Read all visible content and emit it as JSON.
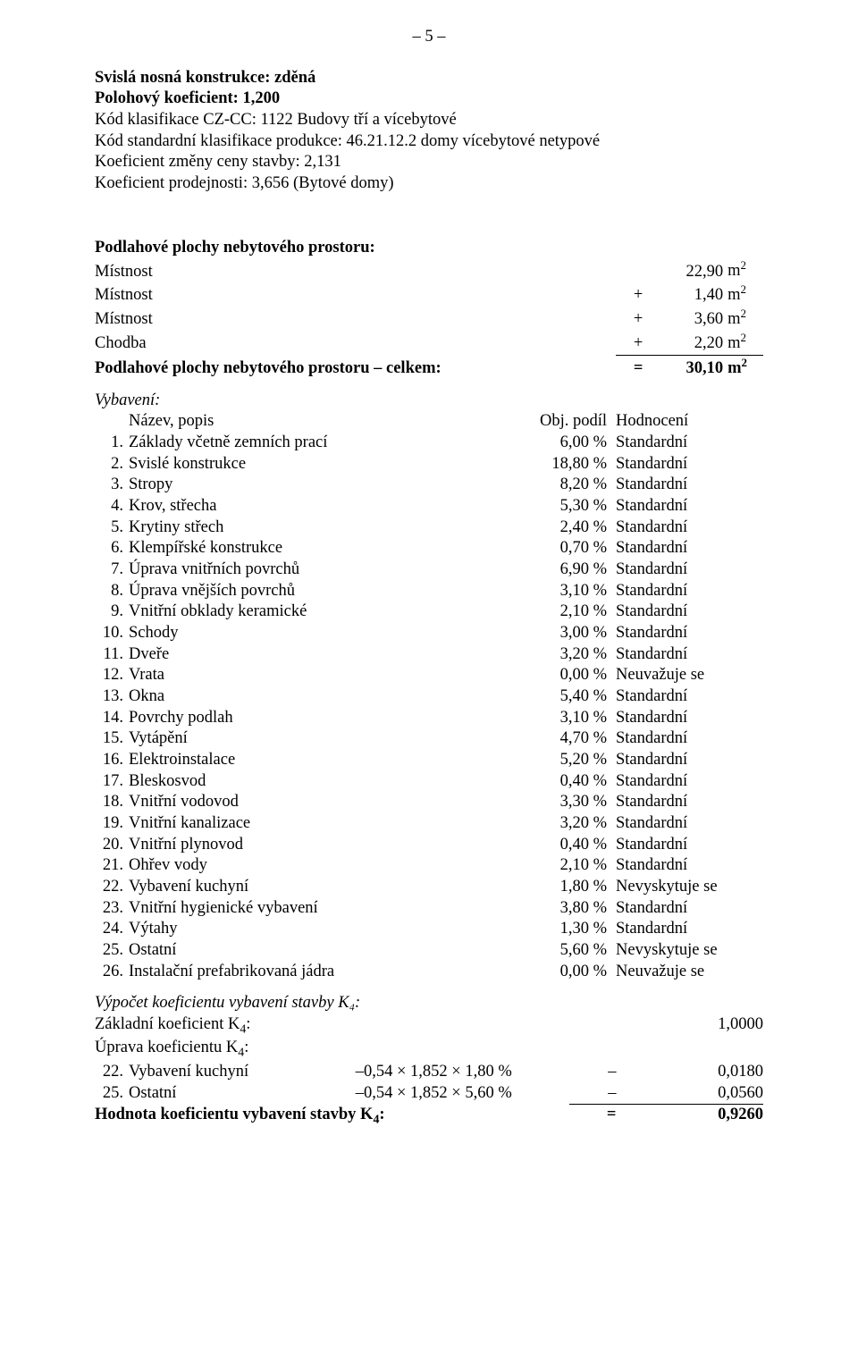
{
  "page_number": "– 5 –",
  "header": {
    "lines": [
      {
        "label": "Svislá nosná konstrukce:",
        "value": "zděná",
        "bold": true
      },
      {
        "label": "Polohový koeficient:",
        "value": "1,200",
        "bold": true
      },
      {
        "label": "Kód klasifikace CZ-CC:",
        "value": "1122 Budovy tří a vícebytové",
        "bold": false
      },
      {
        "label": "Kód standardní klasifikace produkce:",
        "value": "46.21.12.2     domy vícebytové netypové",
        "bold": false
      },
      {
        "label": "Koeficient změny ceny stavby:",
        "value": "2,131",
        "bold": false
      },
      {
        "label": "Koeficient prodejnosti:",
        "value": "3,656 (Bytové domy)",
        "bold": false
      }
    ]
  },
  "rooms": {
    "heading": "Podlahové plochy nebytového prostoru:",
    "items": [
      {
        "label": "Místnost",
        "sign": "",
        "value": "22,90",
        "unit_base": "m",
        "unit_sup": "2"
      },
      {
        "label": "Místnost",
        "sign": "+",
        "value": "1,40",
        "unit_base": "m",
        "unit_sup": "2"
      },
      {
        "label": "Místnost",
        "sign": "+",
        "value": "3,60",
        "unit_base": "m",
        "unit_sup": "2"
      },
      {
        "label": "Chodba",
        "sign": "+",
        "value": "2,20",
        "unit_base": "m",
        "unit_sup": "2"
      }
    ],
    "total": {
      "label": "Podlahové plochy nebytového prostoru – celkem:",
      "sign": "=",
      "value": "30,10",
      "unit_base": "m",
      "unit_sup": "2"
    }
  },
  "equipment": {
    "heading": "Vybavení:",
    "col_name": "Název, popis",
    "col_share": "Obj. podíl",
    "col_rating": "Hodnocení",
    "rows": [
      {
        "n": "1.",
        "name": "Základy včetně zemních prací",
        "pct": "6,00 %",
        "rating": "Standardní"
      },
      {
        "n": "2.",
        "name": "Svislé konstrukce",
        "pct": "18,80 %",
        "rating": "Standardní"
      },
      {
        "n": "3.",
        "name": "Stropy",
        "pct": "8,20 %",
        "rating": "Standardní"
      },
      {
        "n": "4.",
        "name": "Krov, střecha",
        "pct": "5,30 %",
        "rating": "Standardní"
      },
      {
        "n": "5.",
        "name": "Krytiny střech",
        "pct": "2,40 %",
        "rating": "Standardní"
      },
      {
        "n": "6.",
        "name": "Klempířské konstrukce",
        "pct": "0,70 %",
        "rating": "Standardní"
      },
      {
        "n": "7.",
        "name": "Úprava vnitřních povrchů",
        "pct": "6,90 %",
        "rating": "Standardní"
      },
      {
        "n": "8.",
        "name": "Úprava vnějších povrchů",
        "pct": "3,10 %",
        "rating": "Standardní"
      },
      {
        "n": "9.",
        "name": "Vnitřní obklady keramické",
        "pct": "2,10 %",
        "rating": "Standardní"
      },
      {
        "n": "10.",
        "name": "Schody",
        "pct": "3,00 %",
        "rating": "Standardní"
      },
      {
        "n": "11.",
        "name": "Dveře",
        "pct": "3,20 %",
        "rating": "Standardní"
      },
      {
        "n": "12.",
        "name": "Vrata",
        "pct": "0,00 %",
        "rating": "Neuvažuje se"
      },
      {
        "n": "13.",
        "name": "Okna",
        "pct": "5,40 %",
        "rating": "Standardní"
      },
      {
        "n": "14.",
        "name": "Povrchy podlah",
        "pct": "3,10 %",
        "rating": "Standardní"
      },
      {
        "n": "15.",
        "name": "Vytápění",
        "pct": "4,70 %",
        "rating": "Standardní"
      },
      {
        "n": "16.",
        "name": "Elektroinstalace",
        "pct": "5,20 %",
        "rating": "Standardní"
      },
      {
        "n": "17.",
        "name": "Bleskosvod",
        "pct": "0,40 %",
        "rating": "Standardní"
      },
      {
        "n": "18.",
        "name": "Vnitřní vodovod",
        "pct": "3,30 %",
        "rating": "Standardní"
      },
      {
        "n": "19.",
        "name": "Vnitřní kanalizace",
        "pct": "3,20 %",
        "rating": "Standardní"
      },
      {
        "n": "20.",
        "name": "Vnitřní plynovod",
        "pct": "0,40 %",
        "rating": "Standardní"
      },
      {
        "n": "21.",
        "name": "Ohřev vody",
        "pct": "2,10 %",
        "rating": "Standardní"
      },
      {
        "n": "22.",
        "name": "Vybavení kuchyní",
        "pct": "1,80 %",
        "rating": "Nevyskytuje se"
      },
      {
        "n": "23.",
        "name": "Vnitřní hygienické vybavení",
        "pct": "3,80 %",
        "rating": "Standardní"
      },
      {
        "n": "24.",
        "name": "Výtahy",
        "pct": "1,30 %",
        "rating": "Standardní"
      },
      {
        "n": "25.",
        "name": "Ostatní",
        "pct": "5,60 %",
        "rating": "Nevyskytuje se"
      },
      {
        "n": "26.",
        "name": "Instalační prefabrikovaná jádra",
        "pct": "0,00 %",
        "rating": "Neuvažuje se"
      }
    ]
  },
  "k4": {
    "heading": "Výpočet koeficientu vybavení stavby K₄:",
    "base_label": "Základní koeficient K",
    "base_sub": "4",
    "base_suffix": ":",
    "base_value": "1,0000",
    "adjust_label": "Úprava koeficientu K",
    "adjust_sub": "4",
    "adjust_suffix": ":",
    "rows": [
      {
        "n": "22.",
        "name": "Vybavení kuchyní",
        "expr": "–0,54 × 1,852 × 1,80 %",
        "sign": "–",
        "val": "0,0180"
      },
      {
        "n": "25.",
        "name": "Ostatní",
        "expr": "–0,54 × 1,852 × 5,60 %",
        "sign": "–",
        "val": "0,0560"
      }
    ],
    "result_label": "Hodnota koeficientu vybavení stavby K",
    "result_sub": "4",
    "result_suffix": ":",
    "result_sign": "=",
    "result_value": "0,9260"
  }
}
